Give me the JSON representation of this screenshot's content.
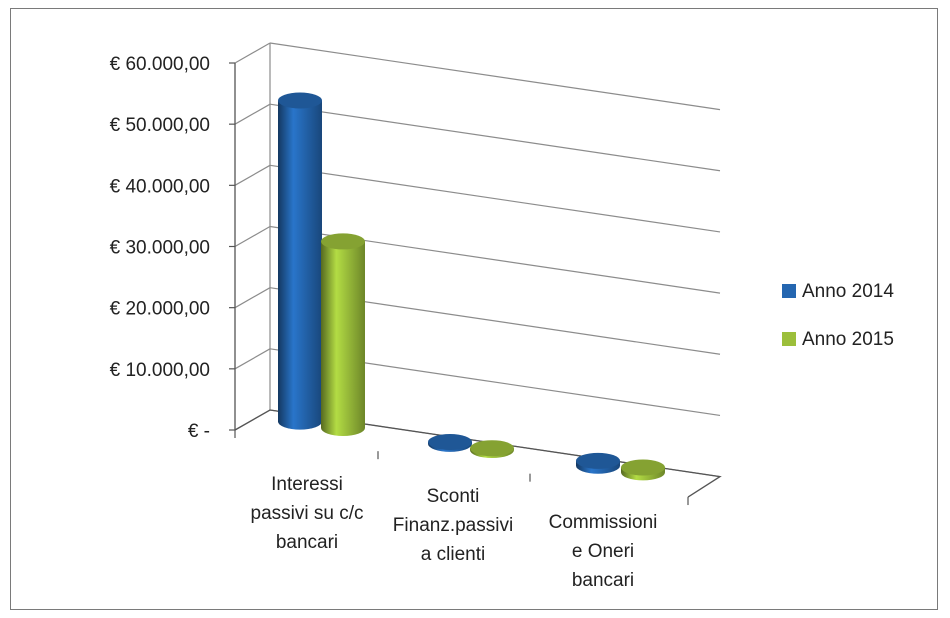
{
  "chart_data": {
    "type": "bar",
    "style": "3d-cylinder",
    "categories": [
      [
        "Interessi",
        "passivi su c/c",
        "bancari"
      ],
      [
        "Sconti",
        "Finanz.passivi",
        "a clienti"
      ],
      [
        "Commissioni",
        "e Oneri",
        "bancari"
      ]
    ],
    "series": [
      {
        "name": "Anno 2014",
        "color": "#2466b0",
        "values": [
          52500,
          300,
          800
        ]
      },
      {
        "name": "Anno 2015",
        "color": "#9cbf3b",
        "values": [
          30500,
          300,
          800
        ]
      }
    ],
    "ylim": [
      0,
      60000
    ],
    "y_ticks": [
      {
        "value": 60000,
        "label": "€ 60.000,00"
      },
      {
        "value": 50000,
        "label": "€ 50.000,00"
      },
      {
        "value": 40000,
        "label": "€ 40.000,00"
      },
      {
        "value": 30000,
        "label": "€ 30.000,00"
      },
      {
        "value": 20000,
        "label": "€ 20.000,00"
      },
      {
        "value": 10000,
        "label": "€ 10.000,00"
      },
      {
        "value": 0,
        "label": "€ -"
      }
    ],
    "grid": true,
    "legend_position": "right"
  }
}
